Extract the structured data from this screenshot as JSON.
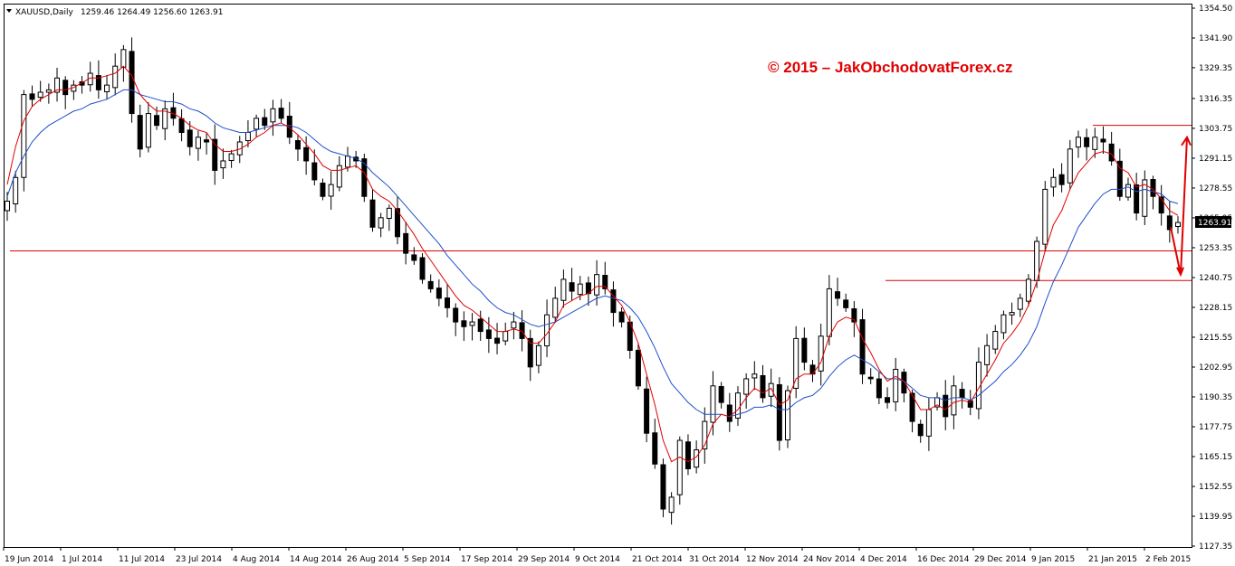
{
  "header": {
    "symbol": "XAUUSD,Daily",
    "ohlc": "1259.46 1264.49 1256.60 1263.91"
  },
  "watermark": "© 2015 – JakObchodovatForex.cz",
  "current_price_label": "1263.91",
  "colors": {
    "candle": "#000000",
    "ma_fast": "#e00000",
    "ma_slow": "#1e50c8",
    "levels": "#e00000",
    "arrows": "#e00000",
    "watermark": "#e00000",
    "current_price_bg": "#000000"
  },
  "chart_data": {
    "type": "candlestick",
    "symbol": "XAUUSD",
    "timeframe": "Daily",
    "y_ticks": [
      "1354.50",
      "1341.90",
      "1329.35",
      "1316.35",
      "1303.75",
      "1291.15",
      "1278.55",
      "1265.95",
      "1253.35",
      "1240.75",
      "1228.15",
      "1215.55",
      "1202.95",
      "1190.35",
      "1177.75",
      "1165.15",
      "1152.55",
      "1139.95",
      "1127.35"
    ],
    "x_ticks": [
      "19 Jun 2014",
      "1 Jul 2014",
      "11 Jul 2014",
      "23 Jul 2014",
      "4 Aug 2014",
      "14 Aug 2014",
      "26 Aug 2014",
      "5 Sep 2014",
      "17 Sep 2014",
      "29 Sep 2014",
      "9 Oct 2014",
      "21 Oct 2014",
      "31 Oct 2014",
      "12 Nov 2014",
      "24 Nov 2014",
      "4 Dec 2014",
      "16 Dec 2014",
      "29 Dec 2014",
      "9 Jan 2015",
      "21 Jan 2015",
      "2 Feb 2015"
    ],
    "ylim": [
      1127.35,
      1354.5
    ],
    "grid": false,
    "close_path": [
      1273,
      1283,
      1318,
      1316,
      1319,
      1320,
      1325,
      1318,
      1322,
      1322,
      1327,
      1320,
      1322,
      1330,
      1337,
      1310,
      1295,
      1310,
      1305,
      1312,
      1308,
      1302,
      1296,
      1300,
      1298,
      1286,
      1290,
      1293,
      1298,
      1302,
      1308,
      1305,
      1312,
      1308,
      1300,
      1295,
      1290,
      1282,
      1275,
      1280,
      1288,
      1292,
      1290,
      1275,
      1262,
      1266,
      1270,
      1258,
      1251,
      1248,
      1240,
      1236,
      1232,
      1228,
      1222,
      1220,
      1222,
      1218,
      1215,
      1213,
      1218,
      1222,
      1215,
      1203,
      1212,
      1225,
      1232,
      1240,
      1235,
      1238,
      1234,
      1242,
      1236,
      1226,
      1222,
      1210,
      1195,
      1175,
      1162,
      1143,
      1148,
      1172,
      1160,
      1168,
      1180,
      1195,
      1188,
      1180,
      1192,
      1198,
      1200,
      1190,
      1196,
      1172,
      1193,
      1215,
      1205,
      1200,
      1216,
      1236,
      1232,
      1228,
      1222,
      1200,
      1198,
      1190,
      1188,
      1202,
      1192,
      1180,
      1174,
      1185,
      1190,
      1182,
      1195,
      1190,
      1186,
      1205,
      1212,
      1218,
      1225,
      1226,
      1232,
      1240,
      1256,
      1278,
      1283,
      1280,
      1295,
      1300,
      1296,
      1300,
      1298,
      1290,
      1275,
      1280,
      1268,
      1282,
      1275,
      1268,
      1261,
      1264
    ],
    "ma_fast": [
      1280,
      1296,
      1307,
      1313,
      1316,
      1318,
      1320,
      1320,
      1321,
      1323,
      1325,
      1325,
      1326,
      1327,
      1330,
      1326,
      1318,
      1314,
      1311,
      1311,
      1310,
      1308,
      1305,
      1303,
      1302,
      1297,
      1294,
      1294,
      1295,
      1297,
      1300,
      1302,
      1305,
      1306,
      1304,
      1301,
      1297,
      1293,
      1288,
      1286,
      1286,
      1287,
      1288,
      1285,
      1278,
      1275,
      1273,
      1269,
      1264,
      1259,
      1253,
      1248,
      1243,
      1238,
      1233,
      1229,
      1227,
      1224,
      1221,
      1218,
      1218,
      1219,
      1218,
      1213,
      1213,
      1217,
      1222,
      1229,
      1231,
      1233,
      1234,
      1237,
      1237,
      1233,
      1229,
      1222,
      1213,
      1200,
      1187,
      1172,
      1163,
      1165,
      1163,
      1165,
      1170,
      1179,
      1183,
      1182,
      1185,
      1190,
      1194,
      1192,
      1194,
      1187,
      1189,
      1198,
      1200,
      1200,
      1205,
      1216,
      1222,
      1224,
      1223,
      1215,
      1209,
      1202,
      1197,
      1199,
      1197,
      1191,
      1185,
      1185,
      1187,
      1185,
      1188,
      1189,
      1188,
      1194,
      1200,
      1206,
      1213,
      1217,
      1222,
      1229,
      1239,
      1252,
      1263,
      1269,
      1278,
      1285,
      1289,
      1293,
      1294,
      1293,
      1287,
      1285,
      1279,
      1280,
      1278,
      1274,
      1269,
      1267
    ],
    "ma_slow": [
      1275,
      1285,
      1292,
      1298,
      1302,
      1305,
      1307,
      1309,
      1311,
      1312,
      1314,
      1315,
      1316,
      1318,
      1320,
      1320,
      1318,
      1317,
      1316,
      1315,
      1315,
      1314,
      1312,
      1311,
      1309,
      1306,
      1304,
      1303,
      1302,
      1302,
      1303,
      1304,
      1305,
      1305,
      1305,
      1304,
      1302,
      1299,
      1296,
      1294,
      1293,
      1292,
      1291,
      1289,
      1285,
      1282,
      1279,
      1275,
      1271,
      1267,
      1263,
      1259,
      1255,
      1250,
      1246,
      1242,
      1238,
      1235,
      1231,
      1228,
      1226,
      1225,
      1223,
      1221,
      1220,
      1221,
      1222,
      1224,
      1226,
      1228,
      1230,
      1232,
      1233,
      1232,
      1231,
      1228,
      1224,
      1218,
      1211,
      1203,
      1196,
      1192,
      1188,
      1185,
      1183,
      1183,
      1183,
      1182,
      1183,
      1184,
      1186,
      1186,
      1187,
      1185,
      1185,
      1188,
      1190,
      1191,
      1194,
      1199,
      1203,
      1206,
      1208,
      1206,
      1204,
      1201,
      1198,
      1198,
      1197,
      1194,
      1191,
      1190,
      1190,
      1189,
      1190,
      1190,
      1189,
      1191,
      1194,
      1197,
      1201,
      1204,
      1208,
      1213,
      1220,
      1230,
      1239,
      1246,
      1254,
      1262,
      1267,
      1272,
      1276,
      1278,
      1278,
      1279,
      1277,
      1278,
      1277,
      1276,
      1273,
      1272
    ],
    "horizontal_levels": [
      {
        "name": "support-line",
        "price": 1252
      },
      {
        "name": "december-high-line",
        "price": 1239.5
      },
      {
        "name": "january-high-line",
        "price": 1305
      }
    ],
    "arrows": [
      {
        "name": "down-arrow",
        "from_price": 1262,
        "to_price": 1242
      },
      {
        "name": "up-arrow",
        "from_price": 1242,
        "to_price": 1300
      }
    ]
  }
}
